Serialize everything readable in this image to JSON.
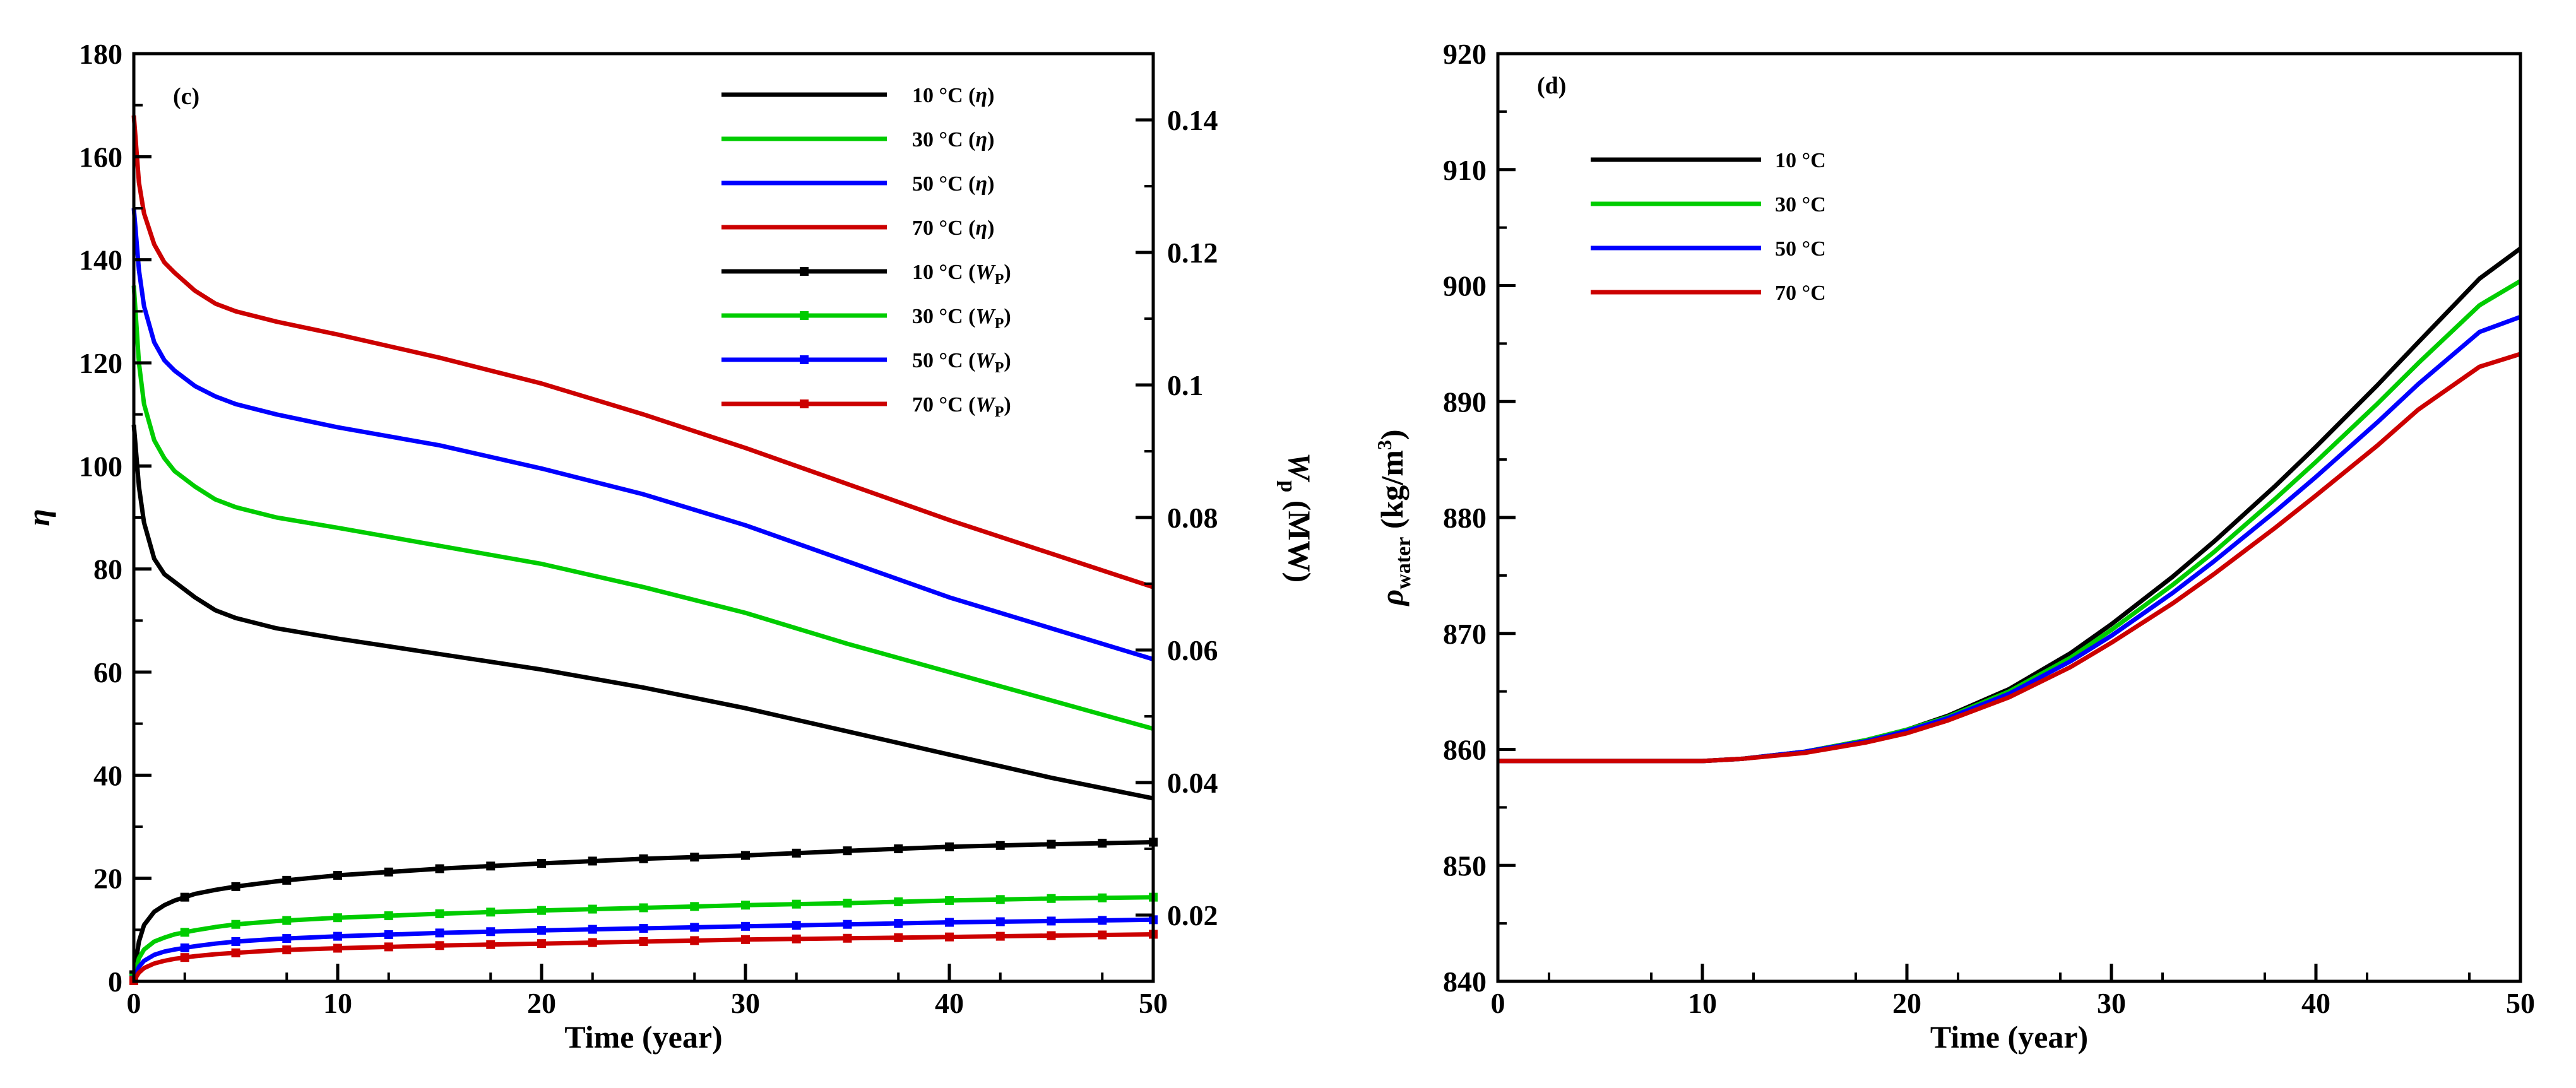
{
  "chart_data": [
    {
      "type": "line",
      "panel_label": "(c)",
      "xlabel": "Time (year)",
      "ylabel_left": "η",
      "ylabel_right_main": "W",
      "ylabel_right_sub": "p",
      "ylabel_right_unit": "(MW)",
      "xlim": [
        0,
        50
      ],
      "ylim_left": [
        0,
        180
      ],
      "ylim_right": [
        0.01,
        0.15
      ],
      "xticks": [
        "0",
        "10",
        "20",
        "30",
        "40",
        "50"
      ],
      "yticks_left": [
        "0",
        "20",
        "40",
        "60",
        "80",
        "100",
        "120",
        "140",
        "160",
        "180"
      ],
      "yticks_right": [
        "0.02",
        "0.04",
        "0.06",
        "0.08",
        "0.1",
        "0.12",
        "0.14"
      ],
      "x": [
        0,
        0.25,
        0.5,
        1,
        1.5,
        2,
        3,
        4,
        5,
        7,
        10,
        15,
        20,
        25,
        30,
        35,
        40,
        45,
        50
      ],
      "series": [
        {
          "name": "10 °C (η)",
          "label_main": "10 °C (",
          "label_sym": "η",
          "label_sub": "",
          "label_end": ")",
          "color": "#000000",
          "axis": "left",
          "marker": false,
          "values": [
            108,
            96,
            89,
            82,
            79,
            77.5,
            74.5,
            72,
            70.5,
            68.5,
            66.5,
            63.5,
            60.5,
            57,
            53,
            48.5,
            44,
            39.5,
            35.5
          ]
        },
        {
          "name": "30 °C (η)",
          "label_main": "30 °C (",
          "label_sym": "η",
          "label_sub": "",
          "label_end": ")",
          "color": "#00cc00",
          "axis": "left",
          "marker": false,
          "values": [
            135,
            120,
            112,
            105,
            101.5,
            99,
            96,
            93.5,
            92,
            90,
            88,
            84.5,
            81,
            76.5,
            71.5,
            65.5,
            60,
            54.5,
            49
          ]
        },
        {
          "name": "50 °C (η)",
          "label_main": "50 °C (",
          "label_sym": "η",
          "label_sub": "",
          "label_end": ")",
          "color": "#0000ff",
          "axis": "left",
          "marker": false,
          "values": [
            150,
            138,
            131,
            124,
            120.5,
            118.5,
            115.5,
            113.5,
            112,
            110,
            107.5,
            104,
            99.5,
            94.5,
            88.5,
            81.5,
            74.5,
            68.5,
            62.5
          ]
        },
        {
          "name": "70 °C (η)",
          "label_main": "70 °C (",
          "label_sym": "η",
          "label_sub": "",
          "label_end": ")",
          "color": "#cc0000",
          "axis": "left",
          "marker": false,
          "values": [
            168,
            155,
            149,
            143,
            139.5,
            137.5,
            134,
            131.5,
            130,
            128,
            125.5,
            121,
            116,
            110,
            103.5,
            96.5,
            89.5,
            83,
            76.5
          ]
        },
        {
          "name": "10 °C (Wp)",
          "label_main": "10 °C (",
          "label_sym": "W",
          "label_sub": "P",
          "label_end": ")",
          "color": "#000000",
          "axis": "right",
          "marker": true,
          "values": [
            0.011,
            0.016,
            0.0185,
            0.0205,
            0.0215,
            0.0222,
            0.0232,
            0.0238,
            0.0243,
            0.0251,
            0.026,
            0.027,
            0.0278,
            0.0285,
            0.029,
            0.0297,
            0.0303,
            0.0307,
            0.031
          ]
        },
        {
          "name": "30 °C (Wp)",
          "label_main": "30 °C (",
          "label_sym": "W",
          "label_sub": "P",
          "label_end": ")",
          "color": "#00cc00",
          "axis": "right",
          "marker": true,
          "values": [
            0.0105,
            0.0135,
            0.0148,
            0.016,
            0.0166,
            0.0171,
            0.0177,
            0.0182,
            0.0186,
            0.0191,
            0.0196,
            0.0202,
            0.0207,
            0.0211,
            0.0215,
            0.0218,
            0.0222,
            0.0225,
            0.0227
          ]
        },
        {
          "name": "50 °C (Wp)",
          "label_main": "50 °C (",
          "label_sym": "W",
          "label_sub": "P",
          "label_end": ")",
          "color": "#0000ff",
          "axis": "right",
          "marker": true,
          "values": [
            0.0102,
            0.0122,
            0.0131,
            0.014,
            0.0145,
            0.0148,
            0.0153,
            0.0157,
            0.016,
            0.0164,
            0.0168,
            0.0173,
            0.0177,
            0.018,
            0.0183,
            0.0186,
            0.0189,
            0.0191,
            0.0193
          ]
        },
        {
          "name": "70 °C (Wp)",
          "label_main": "70 °C (",
          "label_sym": "W",
          "label_sub": "P",
          "label_end": ")",
          "color": "#cc0000",
          "axis": "right",
          "marker": true,
          "values": [
            0.0101,
            0.0113,
            0.012,
            0.0127,
            0.0131,
            0.0134,
            0.0138,
            0.0141,
            0.0143,
            0.0147,
            0.015,
            0.0154,
            0.0157,
            0.016,
            0.0163,
            0.0165,
            0.0167,
            0.0169,
            0.0171
          ]
        }
      ]
    },
    {
      "type": "line",
      "panel_label": "(d)",
      "xlabel": "Time (year)",
      "ylabel_main": "ρ",
      "ylabel_sub": "water",
      "ylabel_unit": " (kg/m",
      "ylabel_sup": "3",
      "ylabel_end": ")",
      "xlim": [
        0,
        50
      ],
      "ylim": [
        840,
        920
      ],
      "xticks": [
        "0",
        "10",
        "20",
        "30",
        "40",
        "50"
      ],
      "yticks": [
        "840",
        "850",
        "860",
        "870",
        "880",
        "890",
        "900",
        "910",
        "920"
      ],
      "x": [
        0,
        5,
        10,
        12,
        15,
        18,
        20,
        22,
        25,
        28,
        30,
        33,
        35,
        38,
        40,
        43,
        45,
        48,
        50
      ],
      "series": [
        {
          "name": "10 °C",
          "color": "#000000",
          "values": [
            859,
            859,
            859,
            859.2,
            859.8,
            860.8,
            861.7,
            862.9,
            865.2,
            868.3,
            870.8,
            874.9,
            877.9,
            882.7,
            886.1,
            891.4,
            895.1,
            900.6,
            903.2
          ]
        },
        {
          "name": "30 °C",
          "color": "#00cc00",
          "values": [
            859,
            859,
            859,
            859.2,
            859.8,
            860.8,
            861.7,
            862.8,
            865.0,
            867.9,
            870.3,
            874.2,
            877.0,
            881.6,
            884.8,
            889.8,
            893.3,
            898.3,
            900.4
          ]
        },
        {
          "name": "50 °C",
          "color": "#0000ff",
          "values": [
            859,
            859,
            859,
            859.2,
            859.8,
            860.7,
            861.6,
            862.7,
            864.8,
            867.6,
            869.8,
            873.5,
            876.2,
            880.5,
            883.5,
            888.2,
            891.5,
            896.0,
            897.3
          ]
        },
        {
          "name": "70 °C",
          "color": "#cc0000",
          "values": [
            859,
            859,
            859,
            859.2,
            859.7,
            860.6,
            861.4,
            862.5,
            864.5,
            867.1,
            869.2,
            872.6,
            875.1,
            879.1,
            881.9,
            886.2,
            889.3,
            893.0,
            894.1
          ]
        }
      ]
    }
  ]
}
